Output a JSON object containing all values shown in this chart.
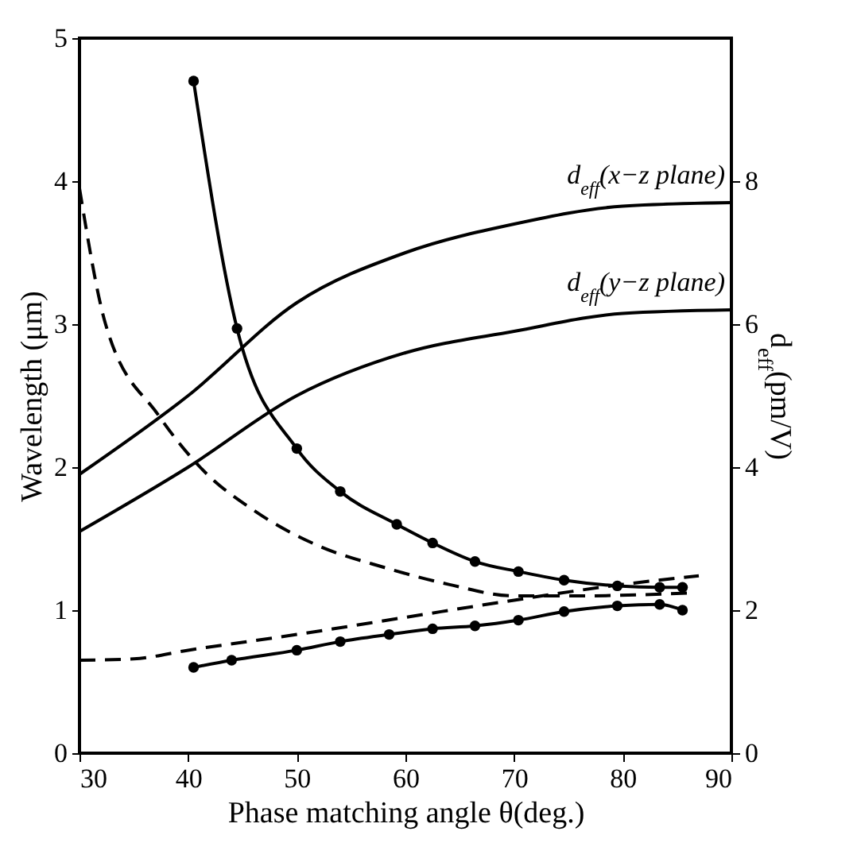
{
  "chart_data": {
    "type": "line",
    "xlabel": "Phase matching angle θ(deg.)",
    "ylabel": "Wavelength (μm)",
    "y2label": "d$_{eff}$(pm/V)",
    "xlim": [
      30,
      90
    ],
    "xticks": [
      30,
      40,
      50,
      60,
      70,
      80,
      90
    ],
    "ylim": [
      0,
      5
    ],
    "yticks": [
      0,
      1,
      2,
      3,
      4,
      5
    ],
    "y2lim": [
      0,
      10
    ],
    "y2ticks": [
      0,
      2,
      4,
      6,
      8
    ],
    "grid": false,
    "series": [
      {
        "color": "#000000",
        "line_style": "solid",
        "marker": "circle",
        "x": [
          40.5,
          44.5,
          50,
          54,
          59.2,
          62.5,
          66.4,
          70.4,
          74.6,
          79.5,
          83.4,
          85.5
        ],
        "values": [
          4.7,
          2.97,
          2.13,
          1.83,
          1.6,
          1.47,
          1.34,
          1.27,
          1.21,
          1.17,
          1.16,
          1.16
        ]
      },
      {
        "color": "#000000",
        "line_style": "solid",
        "marker": "circle",
        "x": [
          40.5,
          44,
          50,
          54,
          58.5,
          62.5,
          66.4,
          70.4,
          74.6,
          79.5,
          83.4,
          85.5
        ],
        "values": [
          0.6,
          0.65,
          0.72,
          0.78,
          0.83,
          0.87,
          0.89,
          0.93,
          0.99,
          1.03,
          1.04,
          1.0
        ]
      },
      {
        "color": "#000000",
        "line_style": "dashed",
        "marker": "none",
        "x": [
          30,
          32.4,
          37.3,
          41.1,
          46.4,
          52,
          58,
          64,
          70,
          76,
          86
        ],
        "values": [
          3.95,
          3.0,
          2.36,
          2.0,
          1.68,
          1.45,
          1.3,
          1.18,
          1.1,
          1.1,
          1.12
        ]
      },
      {
        "color": "#000000",
        "line_style": "dashed",
        "marker": "none",
        "x": [
          30,
          35,
          40,
          50,
          60,
          70,
          80,
          87
        ],
        "values": [
          0.65,
          0.66,
          0.72,
          0.83,
          0.95,
          1.07,
          1.18,
          1.24
        ]
      },
      {
        "name": "d$_{eff}$(x−z plane)",
        "color": "#000000",
        "line_style": "solid",
        "marker": "none",
        "axis": "y2",
        "x": [
          30,
          40,
          50,
          60,
          70,
          80,
          90
        ],
        "values": [
          3.9,
          5.0,
          6.3,
          7.0,
          7.4,
          7.65,
          7.7
        ]
      },
      {
        "name": "d$_{eff}$(y−z plane)",
        "color": "#000000",
        "line_style": "solid",
        "marker": "none",
        "axis": "y2",
        "x": [
          30,
          40,
          50,
          60,
          70,
          80,
          90
        ],
        "values": [
          3.1,
          4.0,
          5.0,
          5.6,
          5.9,
          6.15,
          6.2
        ]
      }
    ]
  }
}
